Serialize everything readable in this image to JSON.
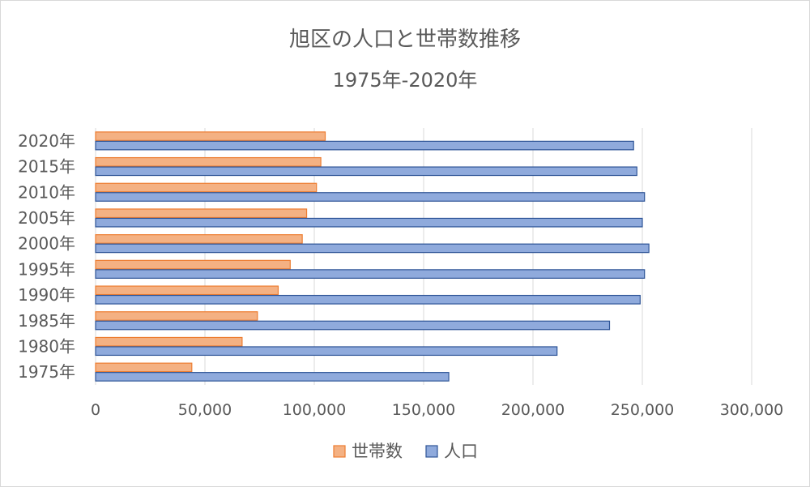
{
  "chart_data": {
    "type": "bar",
    "orientation": "horizontal",
    "title": "旭区の人口と世帯数推移",
    "subtitle": "1975年-2020年",
    "categories": [
      "1975年",
      "1980年",
      "1985年",
      "1990年",
      "1995年",
      "2000年",
      "2005年",
      "2010年",
      "2015年",
      "2020年"
    ],
    "series": [
      {
        "name": "世帯数",
        "values": [
          44000,
          67000,
          74000,
          83500,
          89000,
          94500,
          96500,
          101000,
          103000,
          105000
        ],
        "color": "#F4B183",
        "stroke": "#ED7D31"
      },
      {
        "name": "人口",
        "values": [
          161500,
          211000,
          235000,
          249000,
          251000,
          253000,
          250000,
          251000,
          247500,
          246000
        ],
        "color": "#8FAADC",
        "stroke": "#2F5597"
      }
    ],
    "xlim": [
      0,
      300000
    ],
    "xticks": [
      0,
      50000,
      100000,
      150000,
      200000,
      250000,
      300000
    ],
    "xtick_labels": [
      "0",
      "50,000",
      "100,000",
      "150,000",
      "200,000",
      "250,000",
      "300,000"
    ],
    "xlabel": "",
    "ylabel": "",
    "grid": true,
    "legend": "bottom"
  }
}
